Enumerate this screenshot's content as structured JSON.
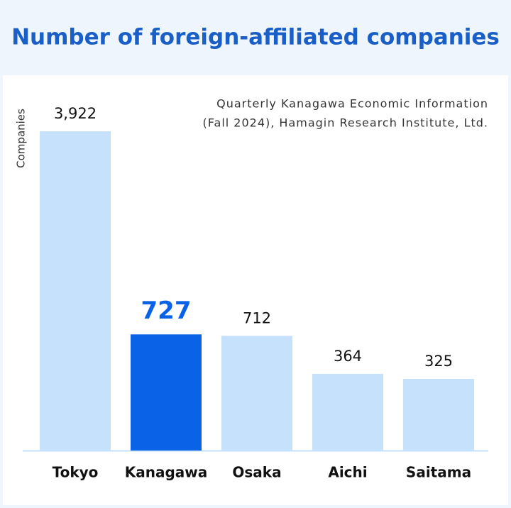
{
  "chart_data": {
    "type": "bar",
    "title": "Number of foreign-affiliated companies",
    "source": [
      "Quarterly Kanagawa Economic Information",
      "(Fall 2024), Hamagin Research Institute, Ltd."
    ],
    "y_label": "Companies",
    "categories": [
      "Tokyo",
      "Kanagawa",
      "Osaka",
      "Aichi",
      "Saitama"
    ],
    "values": [
      3922,
      727,
      712,
      364,
      325
    ],
    "value_labels": [
      "3,922",
      "727",
      "712",
      "364",
      "325"
    ],
    "colors": [
      "#c6e1fb",
      "#0a62e6",
      "#c6e1fb",
      "#c6e1fb",
      "#c6e1fb"
    ]
  }
}
